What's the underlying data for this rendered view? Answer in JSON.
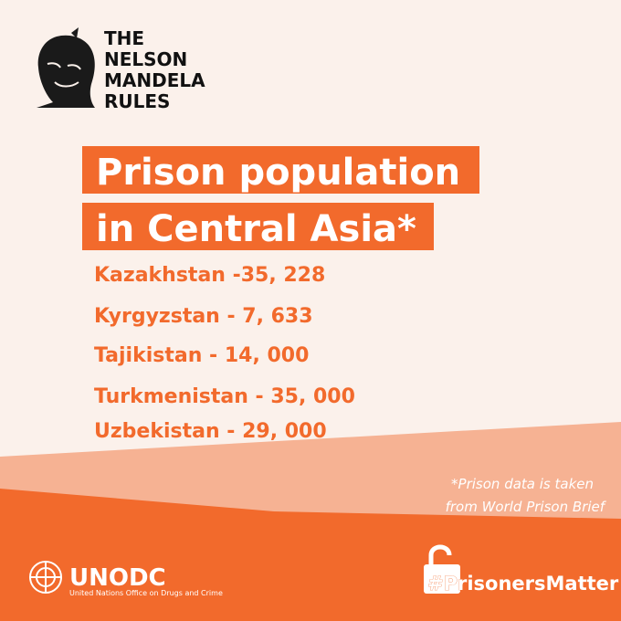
{
  "logo": {
    "lines": [
      "THE",
      "NELSON",
      "MANDELA",
      "RULES"
    ]
  },
  "title": {
    "lines": [
      "Prison population",
      "in Central Asia*"
    ]
  },
  "items": [
    "Kazakhstan -35, 228",
    "Kyrgyzstan - 7, 633",
    "Tajikistan - 14, 000",
    "Turkmenistan - 35, 000",
    "Uzbekistan - 29, 000"
  ],
  "footnote": {
    "lines": [
      "*Prison data is taken",
      "from World Prison Brief"
    ]
  },
  "footer": {
    "org": "UNODC",
    "org_full": "United Nations Office on Drugs and Crime",
    "hashtag": "#PrisonersMatter"
  }
}
